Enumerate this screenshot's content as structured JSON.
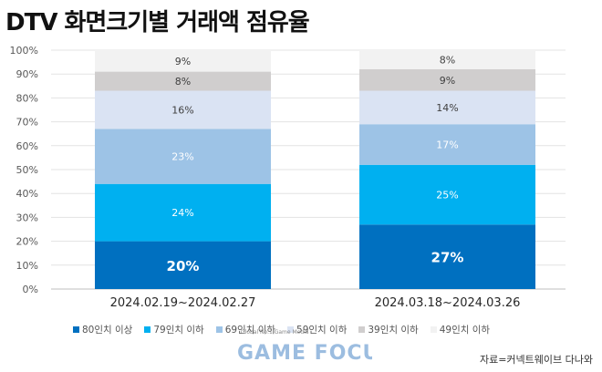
{
  "title": "DTV 화면크기별 거래액 점유율",
  "source": "자료=커넥트웨이브 다나와",
  "watermark": {
    "tagline": "Global No.1 Game Media",
    "brand": "GAME FOCUS"
  },
  "chart_data": {
    "type": "bar",
    "stacked": true,
    "categories": [
      "2024.02.19~2024.02.27",
      "2024.03.18~2024.03.26"
    ],
    "ylim": [
      0,
      100
    ],
    "yticks": [
      "0%",
      "10%",
      "20%",
      "30%",
      "40%",
      "50%",
      "60%",
      "70%",
      "80%",
      "90%",
      "100%"
    ],
    "grid": true,
    "legend_position": "bottom",
    "series": [
      {
        "name": "80인치 이상",
        "color": "#0070c0",
        "values": [
          20,
          27
        ],
        "labels": [
          "20%",
          "27%"
        ],
        "label_color": "#ffffff",
        "emphasis": true
      },
      {
        "name": "79인치 이하",
        "color": "#00b0f0",
        "values": [
          24,
          25
        ],
        "labels": [
          "24%",
          "25%"
        ],
        "label_color": "#ffffff"
      },
      {
        "name": "69인치 이하",
        "color": "#9dc3e6",
        "values": [
          23,
          17
        ],
        "labels": [
          "23%",
          "17%"
        ],
        "label_color": "#ffffff"
      },
      {
        "name": "59인치 이하",
        "color": "#dae3f3",
        "values": [
          16,
          14
        ],
        "labels": [
          "16%",
          "14%"
        ],
        "label_color": "#404040"
      },
      {
        "name": "39인치 이하",
        "color": "#d0cece",
        "values": [
          8,
          9
        ],
        "labels": [
          "8%",
          "9%"
        ],
        "label_color": "#404040"
      },
      {
        "name": "49인치 이하",
        "color": "#f2f2f2",
        "values": [
          9,
          8
        ],
        "labels": [
          "9%",
          "8%"
        ],
        "label_color": "#404040"
      }
    ]
  }
}
